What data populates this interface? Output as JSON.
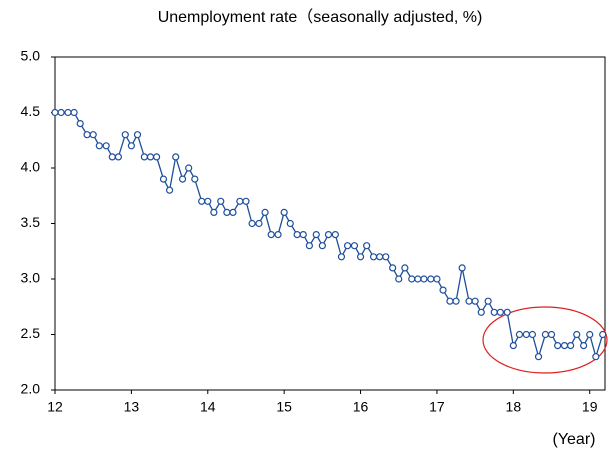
{
  "chart_data": {
    "type": "line",
    "title": "Unemployment rate（seasonally adjusted, %)",
    "x_label": "(Year)",
    "x": [
      12,
      12.08,
      12.17,
      12.25,
      12.33,
      12.42,
      12.5,
      12.58,
      12.67,
      12.75,
      12.83,
      12.92,
      13,
      13.08,
      13.17,
      13.25,
      13.33,
      13.42,
      13.5,
      13.58,
      13.67,
      13.75,
      13.83,
      13.92,
      14,
      14.08,
      14.17,
      14.25,
      14.33,
      14.42,
      14.5,
      14.58,
      14.67,
      14.75,
      14.83,
      14.92,
      15,
      15.08,
      15.17,
      15.25,
      15.33,
      15.42,
      15.5,
      15.58,
      15.67,
      15.75,
      15.83,
      15.92,
      16,
      16.08,
      16.17,
      16.25,
      16.33,
      16.42,
      16.5,
      16.58,
      16.67,
      16.75,
      16.83,
      16.92,
      17,
      17.08,
      17.17,
      17.25,
      17.33,
      17.42,
      17.5,
      17.58,
      17.67,
      17.75,
      17.83,
      17.92,
      18,
      18.08,
      18.17,
      18.25,
      18.33,
      18.42,
      18.5,
      18.58,
      18.67,
      18.75,
      18.83,
      18.92,
      19,
      19.08,
      19.17
    ],
    "series": [
      {
        "name": "Unemployment rate",
        "color": "#1f4e9c",
        "values": [
          4.5,
          4.5,
          4.5,
          4.5,
          4.4,
          4.3,
          4.3,
          4.2,
          4.2,
          4.1,
          4.1,
          4.3,
          4.2,
          4.3,
          4.1,
          4.1,
          4.1,
          3.9,
          3.8,
          4.1,
          3.9,
          4.0,
          3.9,
          3.7,
          3.7,
          3.6,
          3.7,
          3.6,
          3.6,
          3.7,
          3.7,
          3.5,
          3.5,
          3.6,
          3.4,
          3.4,
          3.6,
          3.5,
          3.4,
          3.4,
          3.3,
          3.4,
          3.3,
          3.4,
          3.4,
          3.2,
          3.3,
          3.3,
          3.2,
          3.3,
          3.2,
          3.2,
          3.2,
          3.1,
          3.0,
          3.1,
          3.0,
          3.0,
          3.0,
          3.0,
          3.0,
          2.9,
          2.8,
          2.8,
          3.1,
          2.8,
          2.8,
          2.7,
          2.8,
          2.7,
          2.7,
          2.7,
          2.4,
          2.5,
          2.5,
          2.5,
          2.3,
          2.5,
          2.5,
          2.4,
          2.4,
          2.4,
          2.5,
          2.4,
          2.5,
          2.3,
          2.5
        ]
      }
    ],
    "xlim": [
      12,
      19.2
    ],
    "ylim": [
      2,
      5
    ],
    "xticks": [
      12,
      13,
      14,
      15,
      16,
      17,
      18,
      19
    ],
    "yticks": [
      {
        "value": 2,
        "label": "2.0"
      },
      {
        "value": 2.5,
        "label": "2.5"
      },
      {
        "value": 3,
        "label": "3.0"
      },
      {
        "value": 3.5,
        "label": "3.5"
      },
      {
        "value": 4,
        "label": "4.0"
      },
      {
        "value": 4.5,
        "label": "4.5"
      },
      {
        "value": 5,
        "label": "5.0"
      }
    ],
    "grid": false
  }
}
